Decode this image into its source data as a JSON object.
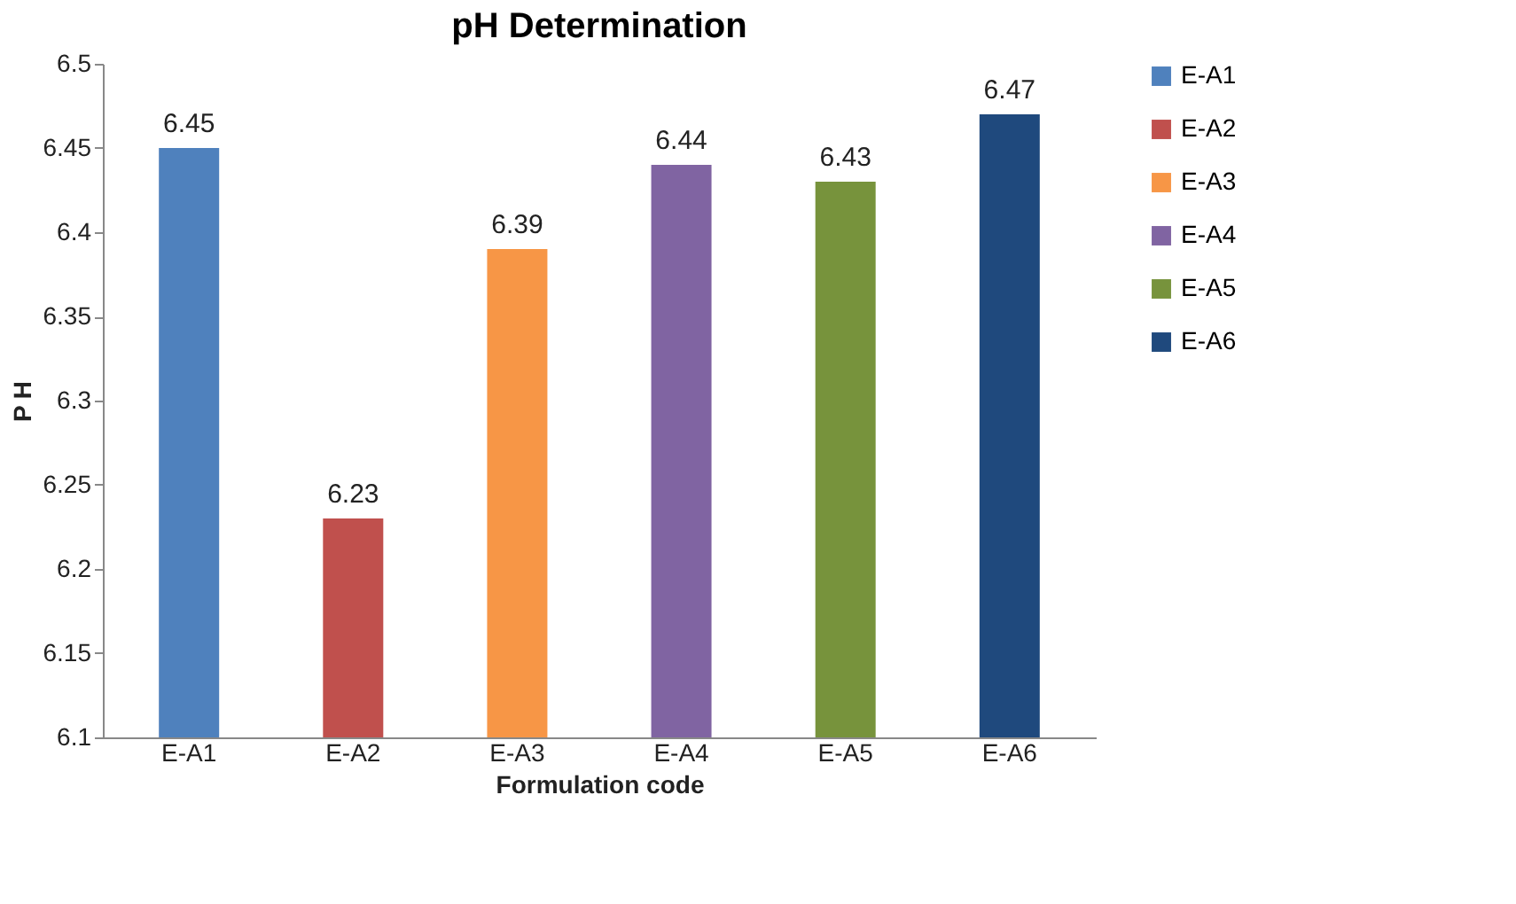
{
  "chart_data": {
    "type": "bar",
    "title": "pH Determination",
    "xlabel": "Formulation code",
    "ylabel": "P H",
    "categories": [
      "E-A1",
      "E-A2",
      "E-A3",
      "E-A4",
      "E-A5",
      "E-A6"
    ],
    "series": [
      {
        "name": "E-A1",
        "color": "#4f81bd",
        "values": [
          6.45,
          null,
          null,
          null,
          null,
          null
        ]
      },
      {
        "name": "E-A2",
        "color": "#c0504d",
        "values": [
          null,
          6.23,
          null,
          null,
          null,
          null
        ]
      },
      {
        "name": "E-A3",
        "color": "#f79646",
        "values": [
          null,
          null,
          6.39,
          null,
          null,
          null
        ]
      },
      {
        "name": "E-A4",
        "color": "#8064a2",
        "values": [
          null,
          null,
          null,
          6.44,
          null,
          null
        ]
      },
      {
        "name": "E-A5",
        "color": "#77933c",
        "values": [
          null,
          null,
          null,
          null,
          6.43,
          null
        ]
      },
      {
        "name": "E-A6",
        "color": "#1f497d",
        "values": [
          null,
          null,
          null,
          null,
          null,
          6.47
        ]
      }
    ],
    "ylim": [
      6.1,
      6.5
    ],
    "yticks": [
      6.1,
      6.15,
      6.2,
      6.25,
      6.3,
      6.35,
      6.4,
      6.45,
      6.5
    ],
    "grid": false,
    "legend": "right",
    "data_labels": true
  }
}
